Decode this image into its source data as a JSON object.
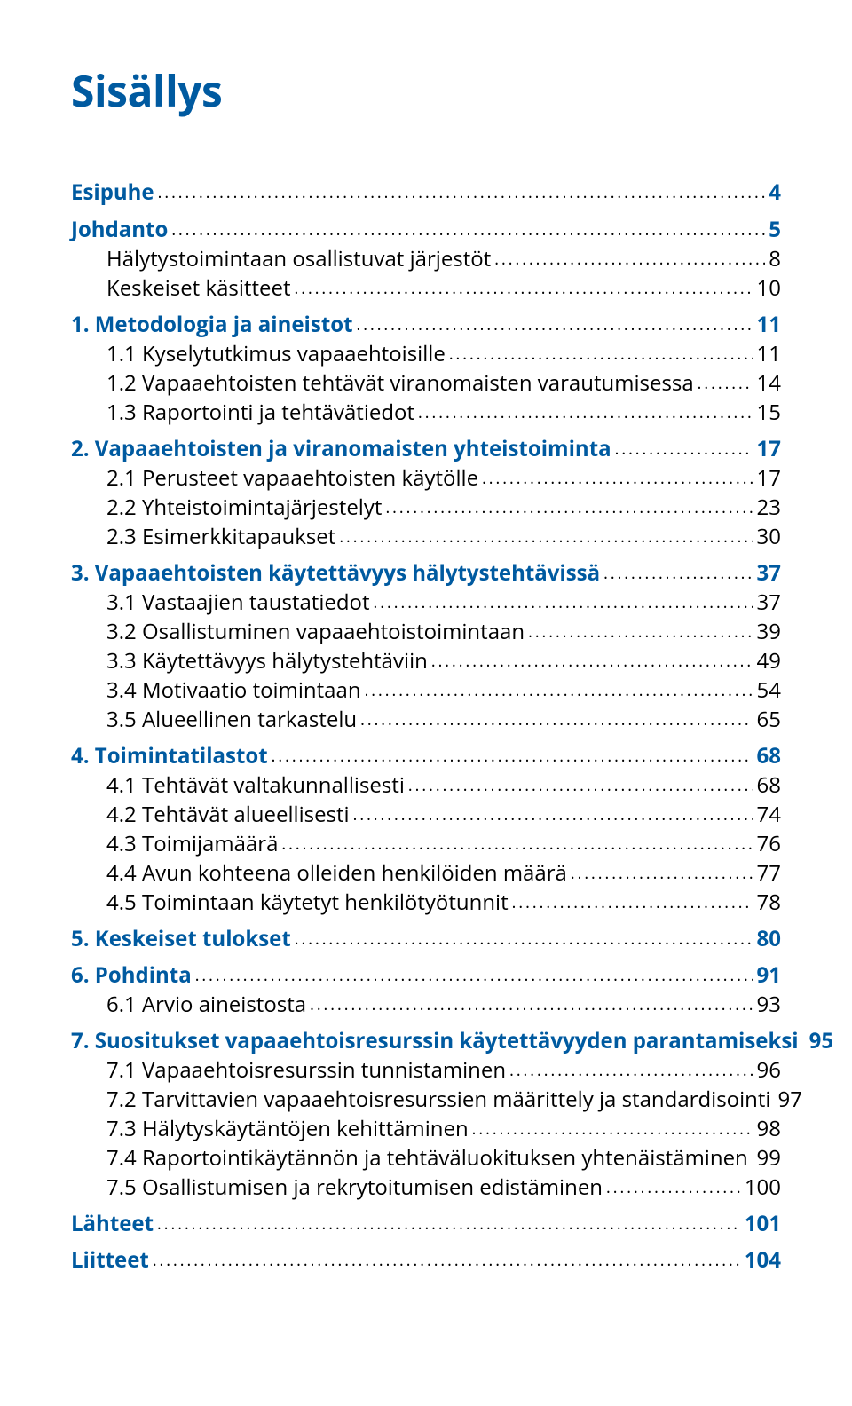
{
  "title": "Sisällys",
  "colors": {
    "accent": "#005aa0",
    "text": "#000000",
    "background": "#ffffff"
  },
  "typography": {
    "title_fontsize_pt": 36,
    "entry_fontsize_pt": 18,
    "font_family": "Myriad Pro / Segoe UI"
  },
  "entries": [
    {
      "level": 1,
      "bold": true,
      "blue_page": true,
      "label": "Esipuhe",
      "page": "4"
    },
    {
      "level": 1,
      "bold": true,
      "blue_page": true,
      "label": "Johdanto",
      "page": "5"
    },
    {
      "level": 2,
      "label": "Hälytystoimintaan osallistuvat järjestöt",
      "page": "8"
    },
    {
      "level": 2,
      "label": "Keskeiset käsitteet",
      "page": "10"
    },
    {
      "level": 1,
      "bold": true,
      "blue_page": true,
      "label": "1.   Metodologia ja aineistot",
      "page": "11",
      "gap": true
    },
    {
      "level": 2,
      "label": "1.1 Kyselytutkimus vapaaehtoisille",
      "page": "11"
    },
    {
      "level": 2,
      "label": "1.2 Vapaaehtoisten tehtävät viranomaisten varautumisessa",
      "page": "14"
    },
    {
      "level": 2,
      "label": "1.3 Raportointi ja tehtävätiedot",
      "page": "15"
    },
    {
      "level": 1,
      "bold": true,
      "blue_page": true,
      "label": "2.   Vapaaehtoisten ja viranomaisten yhteistoiminta",
      "page": "17",
      "gap": true
    },
    {
      "level": 2,
      "label": "2.1 Perusteet vapaaehtoisten käytölle",
      "page": "17"
    },
    {
      "level": 2,
      "label": "2.2 Yhteistoimintajärjestelyt",
      "page": "23"
    },
    {
      "level": 2,
      "label": "2.3 Esimerkkitapaukset",
      "page": "30"
    },
    {
      "level": 1,
      "bold": true,
      "blue_page": true,
      "label": "3.   Vapaaehtoisten käytettävyys hälytystehtävissä",
      "page": "37",
      "gap": true
    },
    {
      "level": 2,
      "label": "3.1 Vastaajien taustatiedot",
      "page": "37"
    },
    {
      "level": 2,
      "label": "3.2 Osallistuminen vapaaehtoistoimintaan",
      "page": "39"
    },
    {
      "level": 2,
      "label": "3.3 Käytettävyys hälytystehtäviin",
      "page": "49"
    },
    {
      "level": 2,
      "label": "3.4 Motivaatio toimintaan",
      "page": "54"
    },
    {
      "level": 2,
      "label": "3.5 Alueellinen tarkastelu",
      "page": "65"
    },
    {
      "level": 1,
      "bold": true,
      "blue_page": true,
      "label": "4.   Toimintatilastot",
      "page": "68",
      "gap": true
    },
    {
      "level": 2,
      "label": "4.1 Tehtävät valtakunnallisesti",
      "page": "68"
    },
    {
      "level": 2,
      "label": "4.2 Tehtävät alueellisesti",
      "page": "74"
    },
    {
      "level": 2,
      "label": "4.3 Toimijamäärä",
      "page": "76"
    },
    {
      "level": 2,
      "label": "4.4 Avun kohteena olleiden henkilöiden määrä",
      "page": "77"
    },
    {
      "level": 2,
      "label": "4.5 Toimintaan käytetyt henkilötyötunnit",
      "page": "78"
    },
    {
      "level": 1,
      "bold": true,
      "blue_page": true,
      "label": "5. Keskeiset tulokset",
      "page": "80",
      "gap": true
    },
    {
      "level": 1,
      "bold": true,
      "blue_page": true,
      "label": "6. Pohdinta",
      "page": "91",
      "gap": true
    },
    {
      "level": 2,
      "label": "6.1 Arvio aineistosta",
      "page": "93"
    },
    {
      "level": 1,
      "bold": true,
      "blue_page": true,
      "label": "7.   Suositukset vapaaehtoisresurssin käytettävyyden parantamiseksi",
      "page": "95",
      "noleader": true,
      "gap": true
    },
    {
      "level": 2,
      "label": "7.1 Vapaaehtoisresurssin tunnistaminen",
      "page": "96"
    },
    {
      "level": 2,
      "label": "7.2 Tarvittavien vapaaehtoisresurssien määrittely ja standardisointi",
      "page": "97"
    },
    {
      "level": 2,
      "label": "7.3 Hälytyskäytäntöjen kehittäminen",
      "page": "98"
    },
    {
      "level": 2,
      "label": "7.4 Raportointikäytännön ja tehtäväluokituksen yhtenäistäminen",
      "page": "99"
    },
    {
      "level": 2,
      "label": "7.5 Osallistumisen ja rekrytoitumisen edistäminen",
      "page": "100"
    },
    {
      "level": 1,
      "bold": true,
      "blue_page": true,
      "label": "Lähteet",
      "page": "101",
      "gap": true
    },
    {
      "level": 1,
      "bold": true,
      "blue_page": true,
      "label": "Liitteet",
      "page": "104",
      "gap": true
    }
  ]
}
